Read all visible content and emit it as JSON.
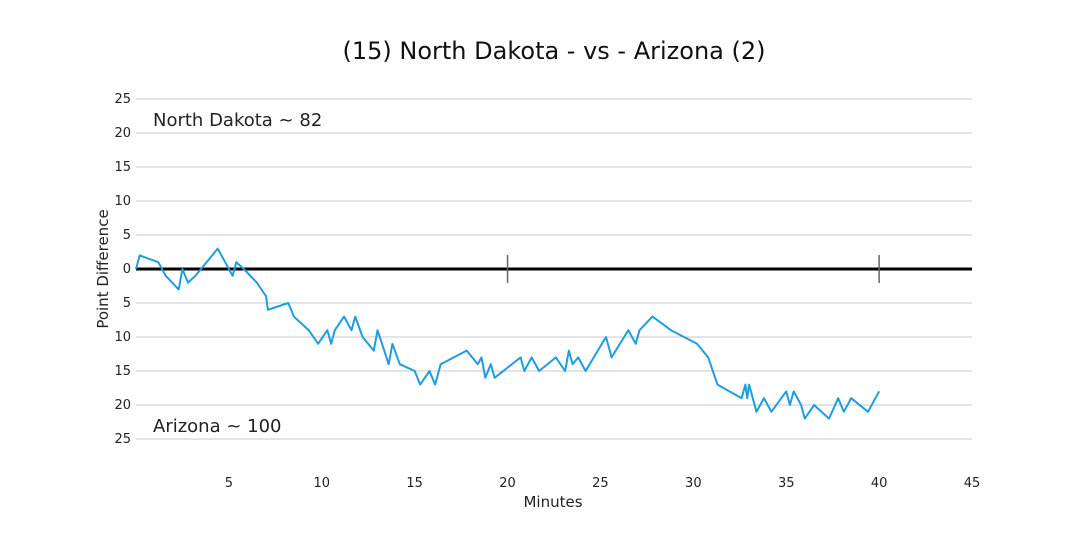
{
  "chart_data": {
    "type": "line",
    "title": "(15) North Dakota - vs - Arizona (2)",
    "xlabel": "Minutes",
    "ylabel": "Point Difference",
    "xlim": [
      0,
      45
    ],
    "ylim": [
      -25,
      25
    ],
    "x_ticks": [
      5,
      10,
      15,
      20,
      25,
      30,
      35,
      40,
      45
    ],
    "y_ticks": [
      25,
      20,
      15,
      10,
      5,
      0,
      -5,
      -10,
      -15,
      -20,
      -25
    ],
    "y_tick_labels": [
      "25",
      "20",
      "15",
      "10",
      "5",
      "0",
      "5",
      "10",
      "15",
      "20",
      "25"
    ],
    "grid": true,
    "line_color": "#1f9de0",
    "zero_line_color": "#000000",
    "half_markers": [
      20,
      40
    ],
    "annotations": [
      {
        "text": "North Dakota ~ 82",
        "position": "top-left"
      },
      {
        "text": "Arizona ~ 100",
        "position": "bottom-left"
      }
    ],
    "series": [
      {
        "x": [
          0,
          0.2,
          1.2,
          1.6,
          2.3,
          2.5,
          2.8,
          3.2,
          3.8,
          4.4,
          4.8,
          5.2,
          5.4,
          5.8,
          6.5,
          7.0,
          7.1,
          8.2,
          8.5,
          9.3,
          9.8,
          10.3,
          10.5,
          10.7,
          11.2,
          11.6,
          11.8,
          12.2,
          12.8,
          13.0,
          13.6,
          13.8,
          14.2,
          15.0,
          15.3,
          15.8,
          16.1,
          16.4,
          17.8,
          18.4,
          18.6,
          18.8,
          19.1,
          19.3,
          20.7,
          20.9,
          21.3,
          21.7,
          22.6,
          23.1,
          23.3,
          23.5,
          23.8,
          24.2,
          25.3,
          25.6,
          26.5,
          26.9,
          27.1,
          27.8,
          28.8,
          29.5,
          30.2,
          30.8,
          31.3,
          32.6,
          32.8,
          32.9,
          33.0,
          33.4,
          33.8,
          34.2,
          35.0,
          35.2,
          35.4,
          35.8,
          36.0,
          36.5,
          37.3,
          37.8,
          38.1,
          38.5,
          39.4,
          40.0
        ],
        "y": [
          0,
          2,
          1,
          -1,
          -3,
          0,
          -2,
          -1,
          1,
          3,
          1,
          -1,
          1,
          0,
          -2,
          -4,
          -6,
          -5,
          -7,
          -9,
          -11,
          -9,
          -11,
          -9,
          -7,
          -9,
          -7,
          -10,
          -12,
          -9,
          -14,
          -11,
          -14,
          -15,
          -17,
          -15,
          -17,
          -14,
          -12,
          -14,
          -13,
          -16,
          -14,
          -16,
          -13,
          -15,
          -13,
          -15,
          -13,
          -15,
          -12,
          -14,
          -13,
          -15,
          -10,
          -13,
          -9,
          -11,
          -9,
          -7,
          -9,
          -10,
          -11,
          -13,
          -17,
          -19,
          -17,
          -19,
          -17,
          -21,
          -19,
          -21,
          -18,
          -20,
          -18,
          -20,
          -22,
          -20,
          -22,
          -19,
          -21,
          -19,
          -21,
          -18
        ]
      }
    ]
  }
}
